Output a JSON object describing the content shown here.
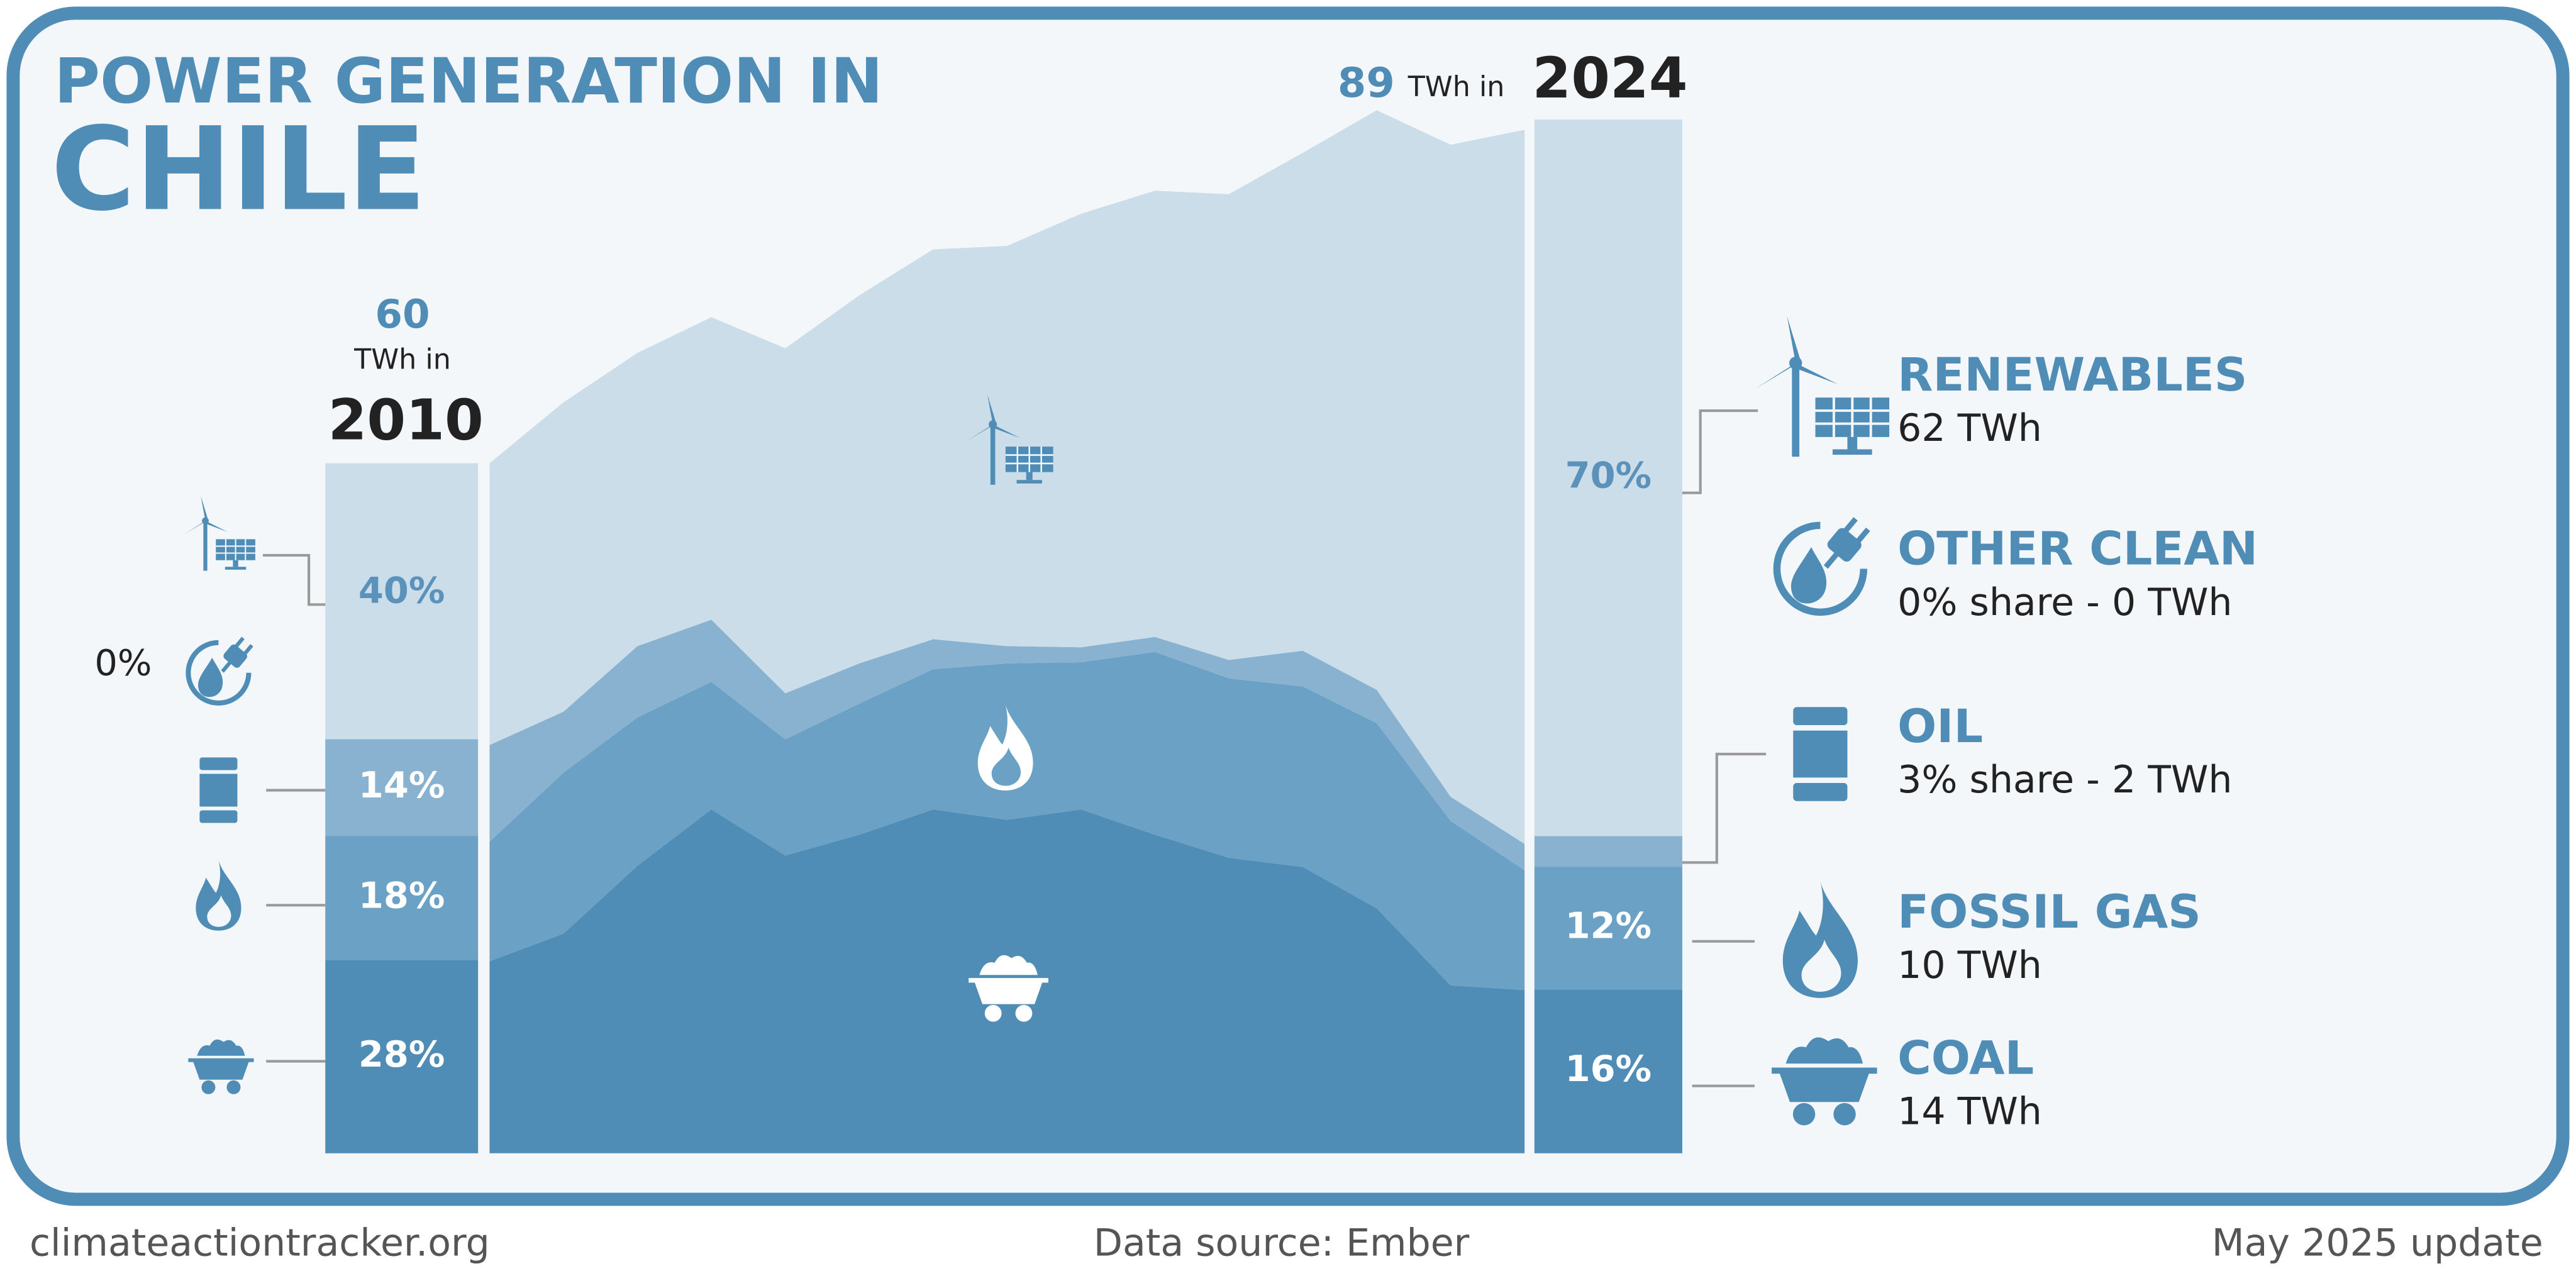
{
  "header": {
    "title_line1": "POWER GENERATION IN",
    "title_line2": "CHILE"
  },
  "chart_data": {
    "type": "area",
    "x": [
      2010,
      2011,
      2012,
      2013,
      2014,
      2015,
      2016,
      2017,
      2018,
      2019,
      2020,
      2021,
      2022,
      2023,
      2024
    ],
    "xlim": [
      2010,
      2024
    ],
    "ylim": [
      0,
      90
    ],
    "total_unit": "TWh in",
    "start_total": 60,
    "end_total": 89,
    "series": [
      {
        "name": "COAL",
        "color": "#4f8db7",
        "values": [
          16.7,
          19.1,
          25,
          29.9,
          25.9,
          27.7,
          29.9,
          29,
          29.9,
          27.7,
          25.7,
          24.9,
          21.3,
          14.6,
          14.2
        ],
        "start_share": 28,
        "start_label": "28%",
        "end_share": 16,
        "end_label": "16%",
        "legend_detail": "14 TWh"
      },
      {
        "name": "FOSSIL GAS",
        "color": "#6aa1c5",
        "values": [
          10.4,
          14,
          12.9,
          11.1,
          10.1,
          11.4,
          12.2,
          13.6,
          12.8,
          15.9,
          15.6,
          15.7,
          16.1,
          14.3,
          10.4
        ],
        "start_share": 18,
        "start_label": "18%",
        "end_share": 12,
        "end_label": "12%",
        "legend_detail": "10 TWh"
      },
      {
        "name": "OIL",
        "color": "#88b2d0",
        "values": [
          8.4,
          5.3,
          6.2,
          5.4,
          4,
          3.5,
          2.6,
          1.5,
          1.3,
          1.3,
          1.6,
          3.1,
          2.9,
          2.1,
          2.3
        ],
        "start_share": 14,
        "start_label": "14%",
        "end_share": 3,
        "legend_detail": "3% share - 2 TWh"
      },
      {
        "name": "OTHER CLEAN",
        "color": "#a9c6dc",
        "values": [
          0,
          0,
          0,
          0,
          0,
          0,
          0,
          0,
          0,
          0,
          0,
          0,
          0,
          0,
          0
        ],
        "start_share": 0,
        "start_label": "0%",
        "end_share": 0,
        "legend_detail": "0% share - 0 TWh"
      },
      {
        "name": "RENEWABLES",
        "color": "#cbdde9",
        "values": [
          24.5,
          26.9,
          25.5,
          26.3,
          30,
          32,
          33.9,
          34.8,
          37.7,
          38.8,
          40.5,
          43.3,
          50.4,
          56.7,
          62.1
        ],
        "start_share": 40,
        "start_label": "40%",
        "end_share": 70,
        "end_label": "70%",
        "legend_detail": "62 TWh"
      }
    ]
  },
  "footer": {
    "site": "climateactiontracker.org",
    "source": "Data source: Ember",
    "update": "May 2025 update"
  }
}
